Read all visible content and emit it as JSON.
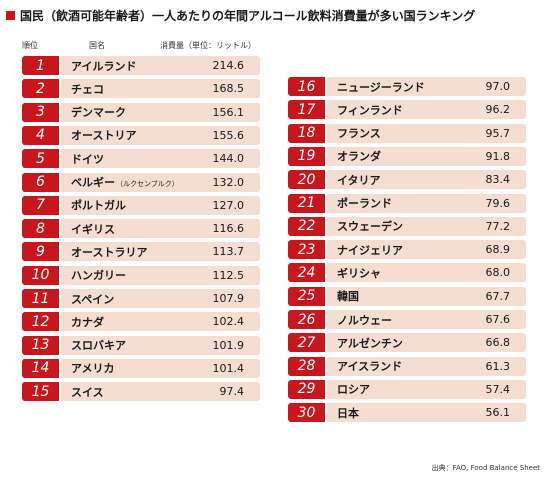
{
  "title": "国民（飲酒可能年齢者）一人あたりの年間アルコール飲料消費量が多い国ランキング",
  "source": "出典：FAO, Food Balance Sheet",
  "colors": {
    "accent": "#c8161d",
    "row_bg": "#f6ddd2"
  },
  "chart_data": {
    "type": "table",
    "columns": [
      "順位",
      "国名",
      "消費量（単位：リットル）"
    ],
    "rows": [
      {
        "rank": "1",
        "country": "アイルランド",
        "note": "",
        "value": "214.6"
      },
      {
        "rank": "2",
        "country": "チェコ",
        "note": "",
        "value": "168.5"
      },
      {
        "rank": "3",
        "country": "デンマーク",
        "note": "",
        "value": "156.1"
      },
      {
        "rank": "4",
        "country": "オーストリア",
        "note": "",
        "value": "155.6"
      },
      {
        "rank": "5",
        "country": "ドイツ",
        "note": "",
        "value": "144.0"
      },
      {
        "rank": "6",
        "country": "ベルギー",
        "note": "（ルクセンブルク）",
        "value": "132.0"
      },
      {
        "rank": "7",
        "country": "ポルトガル",
        "note": "",
        "value": "127.0"
      },
      {
        "rank": "8",
        "country": "イギリス",
        "note": "",
        "value": "116.6"
      },
      {
        "rank": "9",
        "country": "オーストラリア",
        "note": "",
        "value": "113.7"
      },
      {
        "rank": "10",
        "country": "ハンガリー",
        "note": "",
        "value": "112.5"
      },
      {
        "rank": "11",
        "country": "スペイン",
        "note": "",
        "value": "107.9"
      },
      {
        "rank": "12",
        "country": "カナダ",
        "note": "",
        "value": "102.4"
      },
      {
        "rank": "13",
        "country": "スロバキア",
        "note": "",
        "value": "101.9"
      },
      {
        "rank": "14",
        "country": "アメリカ",
        "note": "",
        "value": "101.4"
      },
      {
        "rank": "15",
        "country": "スイス",
        "note": "",
        "value": "97.4"
      },
      {
        "rank": "16",
        "country": "ニュージーランド",
        "note": "",
        "value": "97.0"
      },
      {
        "rank": "17",
        "country": "フィンランド",
        "note": "",
        "value": "96.2"
      },
      {
        "rank": "18",
        "country": "フランス",
        "note": "",
        "value": "95.7"
      },
      {
        "rank": "19",
        "country": "オランダ",
        "note": "",
        "value": "91.8"
      },
      {
        "rank": "20",
        "country": "イタリア",
        "note": "",
        "value": "83.4"
      },
      {
        "rank": "21",
        "country": "ポーランド",
        "note": "",
        "value": "79.6"
      },
      {
        "rank": "22",
        "country": "スウェーデン",
        "note": "",
        "value": "77.2"
      },
      {
        "rank": "23",
        "country": "ナイジェリア",
        "note": "",
        "value": "68.9"
      },
      {
        "rank": "24",
        "country": "ギリシャ",
        "note": "",
        "value": "68.0"
      },
      {
        "rank": "25",
        "country": "韓国",
        "note": "",
        "value": "67.7"
      },
      {
        "rank": "26",
        "country": "ノルウェー",
        "note": "",
        "value": "67.6"
      },
      {
        "rank": "27",
        "country": "アルゼンチン",
        "note": "",
        "value": "66.8"
      },
      {
        "rank": "28",
        "country": "アイスランド",
        "note": "",
        "value": "61.3"
      },
      {
        "rank": "29",
        "country": "ロシア",
        "note": "",
        "value": "57.4"
      },
      {
        "rank": "30",
        "country": "日本",
        "note": "",
        "value": "56.1"
      }
    ]
  }
}
